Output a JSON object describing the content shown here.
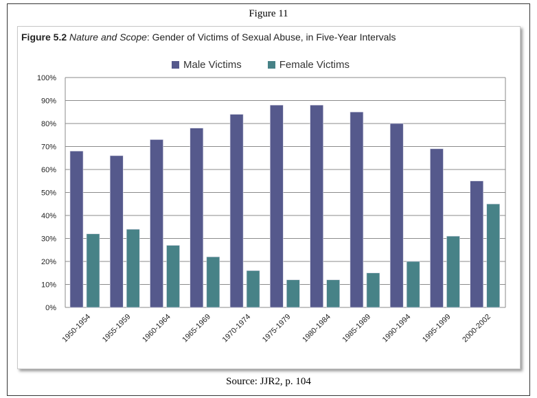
{
  "figure_label": "Figure 11",
  "source": "Source: JJR2, p. 104",
  "chart_data": {
    "type": "bar",
    "title_bold": "Figure 5.2",
    "title_italic": "Nature and Scope",
    "title_rest": ": Gender of Victims of Sexual Abuse, in Five-Year Intervals",
    "categories": [
      "1950-1954",
      "1955-1959",
      "1960-1964",
      "1965-1969",
      "1970-1974",
      "1975-1979",
      "1980-1984",
      "1985-1989",
      "1990-1994",
      "1995-1999",
      "2000-2002"
    ],
    "series": [
      {
        "name": "Male Victims",
        "color": "#55598c",
        "values": [
          68,
          66,
          73,
          78,
          84,
          88,
          88,
          85,
          80,
          69,
          55
        ]
      },
      {
        "name": "Female Victims",
        "color": "#478287",
        "values": [
          32,
          34,
          27,
          22,
          16,
          12,
          12,
          15,
          20,
          31,
          45
        ]
      }
    ],
    "yticks": [
      "0%",
      "10%",
      "20%",
      "30%",
      "40%",
      "50%",
      "60%",
      "70%",
      "80%",
      "90%",
      "100%"
    ],
    "ylim": [
      0,
      100
    ],
    "xlabel": "",
    "ylabel": "",
    "grid": true,
    "legend_position": "top"
  }
}
